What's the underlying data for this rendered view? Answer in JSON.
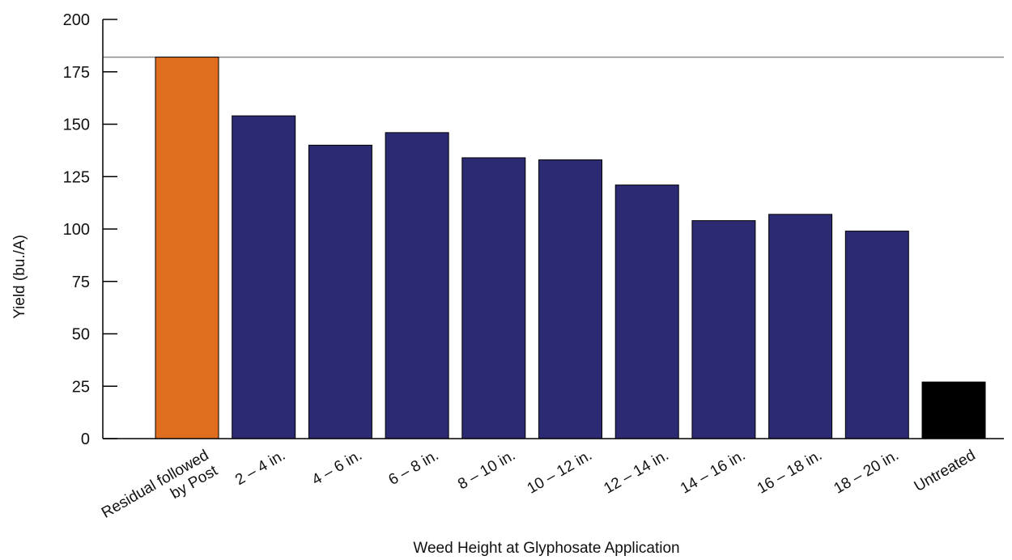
{
  "chart_data": {
    "type": "bar",
    "title": "",
    "xlabel": "Weed Height at Glyphosate Application",
    "ylabel": "Yield (bu./A)",
    "ylim": [
      0,
      200
    ],
    "yticks": [
      0,
      25,
      50,
      75,
      100,
      125,
      150,
      175,
      200
    ],
    "reference_line": 182,
    "grid": false,
    "legend": "none",
    "categories": [
      [
        "Residual followed",
        "by Post"
      ],
      [
        "2 – 4 in."
      ],
      [
        "4 – 6 in."
      ],
      [
        "6 – 8 in."
      ],
      [
        "8 – 10 in."
      ],
      [
        "10 – 12 in."
      ],
      [
        "12 – 14 in."
      ],
      [
        "14 – 16 in."
      ],
      [
        "16 – 18 in."
      ],
      [
        "18 – 20 in."
      ],
      [
        "Untreated"
      ]
    ],
    "values": [
      182,
      154,
      140,
      146,
      134,
      133,
      121,
      104,
      107,
      99,
      27
    ],
    "colors": [
      "#e06e1f",
      "#2b2a72",
      "#2b2a72",
      "#2b2a72",
      "#2b2a72",
      "#2b2a72",
      "#2b2a72",
      "#2b2a72",
      "#2b2a72",
      "#2b2a72",
      "#000000"
    ],
    "axis_color": "#000000",
    "reference_line_color": "#8a8a8a"
  }
}
